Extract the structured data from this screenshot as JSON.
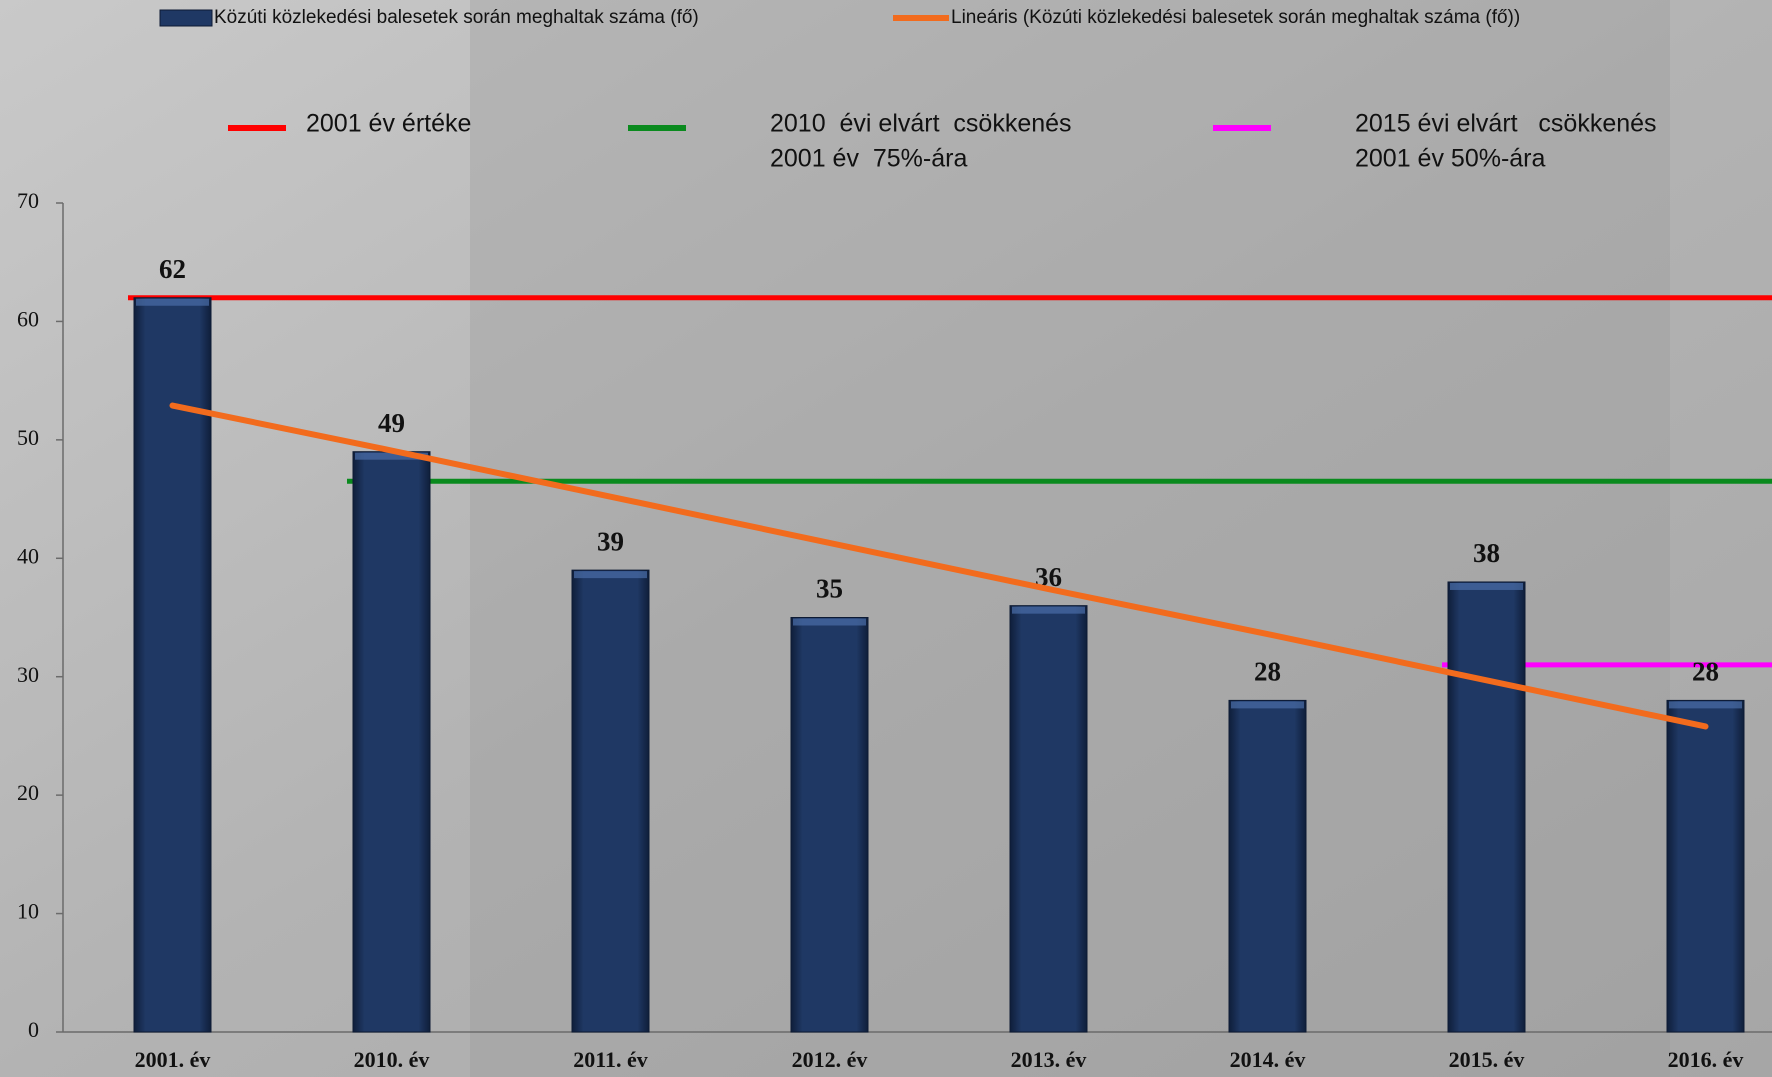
{
  "chart_data": {
    "type": "bar",
    "categories": [
      "2001. év",
      "2010. év",
      "2011. év",
      "2012. év",
      "2013. év",
      "2014. év",
      "2015. év",
      "2016. év"
    ],
    "series": [
      {
        "name": "Közúti közlekedési balesetek során meghaltak száma (fő)",
        "type": "bar",
        "color": "#1f3864",
        "values": [
          62,
          49,
          39,
          35,
          36,
          28,
          38,
          28
        ]
      },
      {
        "name": "Lineáris (Közúti közlekedési balesetek során meghaltak száma (fő))",
        "type": "line",
        "color": "#f26b1d",
        "values": [
          52.9,
          49.1,
          45.2,
          41.3,
          37.4,
          33.6,
          29.7,
          25.8
        ]
      },
      {
        "name": [
          "2001 év értéke"
        ],
        "type": "reference",
        "color": "#ff0000",
        "values": [
          62,
          62,
          62,
          62,
          62,
          62,
          62,
          62
        ]
      },
      {
        "name": [
          "2010  évi elvárt  csökkenés",
          "2001 év  75%-ára"
        ],
        "type": "reference",
        "color": "#0a8a1e",
        "values": [
          null,
          46.5,
          46.5,
          46.5,
          46.5,
          46.5,
          46.5,
          46.5
        ]
      },
      {
        "name": [
          "2015 évi elvárt   csökkenés",
          "2001 év 50%-ára"
        ],
        "type": "reference",
        "color": "#ff00ff",
        "values": [
          null,
          null,
          null,
          null,
          null,
          null,
          31,
          31
        ]
      }
    ],
    "ylim": [
      0,
      70
    ],
    "yticks": [
      0,
      10,
      20,
      30,
      40,
      50,
      60,
      70
    ]
  }
}
